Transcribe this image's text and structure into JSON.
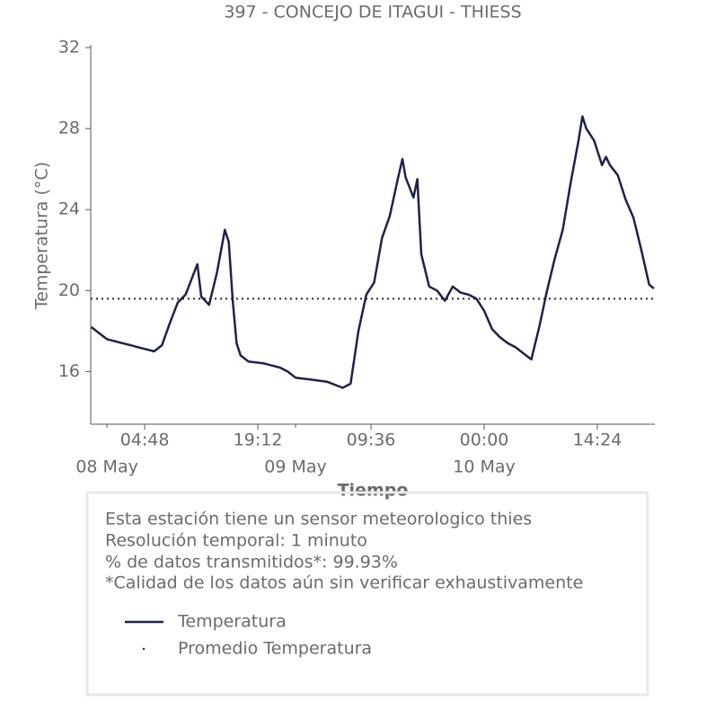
{
  "chart_data": {
    "type": "line",
    "title": "397 - CONCEJO DE ITAGUI - THIESS",
    "x_label": "Tiempo",
    "y_label": "Temperatura (°C)",
    "xlim": [
      "07 May 21:56",
      "10 May 21:43"
    ],
    "ylim": [
      13.4,
      32
    ],
    "yticks": [
      16,
      20,
      24,
      28,
      32
    ],
    "xticks": [
      {
        "value": "08 May 04:48",
        "label": "04:48"
      },
      {
        "value": "08 May 19:12",
        "label": "19:12"
      },
      {
        "value": "09 May 09:36",
        "label": "09:36"
      },
      {
        "value": "10 May 00:00",
        "label": "00:00"
      },
      {
        "value": "10 May 14:24",
        "label": "14:24"
      }
    ],
    "xticks_minor": [
      {
        "value": "08 May 00:00",
        "label": "08 May"
      },
      {
        "value": "09 May 00:00",
        "label": "09 May"
      },
      {
        "value": "10 May 00:00",
        "label": "10 May"
      }
    ],
    "x": [
      "07 May 22:00",
      "07 May 23:00",
      "08 May 00:00",
      "08 May 01:00",
      "08 May 02:00",
      "08 May 03:00",
      "08 May 04:00",
      "08 May 05:00",
      "08 May 06:00",
      "08 May 07:00",
      "08 May 08:00",
      "08 May 09:00",
      "08 May 10:00",
      "08 May 11:00",
      "08 May 11:30",
      "08 May 12:00",
      "08 May 13:00",
      "08 May 14:00",
      "08 May 15:00",
      "08 May 15:30",
      "08 May 16:00",
      "08 May 16:30",
      "08 May 17:00",
      "08 May 18:00",
      "08 May 20:00",
      "08 May 22:00",
      "08 May 23:00",
      "09 May 00:00",
      "09 May 02:00",
      "09 May 04:00",
      "09 May 06:00",
      "09 May 07:00",
      "09 May 08:00",
      "09 May 09:00",
      "09 May 10:00",
      "09 May 11:00",
      "09 May 12:00",
      "09 May 13:00",
      "09 May 13:36",
      "09 May 14:00",
      "09 May 15:00",
      "09 May 15:30",
      "09 May 16:00",
      "09 May 17:00",
      "09 May 18:00",
      "09 May 19:00",
      "09 May 20:00",
      "09 May 21:00",
      "09 May 22:00",
      "09 May 23:00",
      "10 May 00:00",
      "10 May 01:00",
      "10 May 02:00",
      "10 May 03:00",
      "10 May 04:00",
      "10 May 05:00",
      "10 May 06:00",
      "10 May 07:00",
      "10 May 08:00",
      "10 May 09:00",
      "10 May 10:00",
      "10 May 11:00",
      "10 May 12:00",
      "10 May 12:30",
      "10 May 13:00",
      "10 May 14:00",
      "10 May 15:00",
      "10 May 15:30",
      "10 May 16:00",
      "10 May 17:00",
      "10 May 18:00",
      "10 May 19:00",
      "10 May 20:00",
      "10 May 21:00",
      "10 May 21:36"
    ],
    "series": [
      {
        "name": "Temperatura",
        "color": "#20214a",
        "values": [
          18.2,
          17.9,
          17.6,
          17.5,
          17.4,
          17.3,
          17.2,
          17.1,
          17.0,
          17.3,
          18.4,
          19.4,
          19.8,
          20.8,
          21.3,
          19.7,
          19.3,
          20.9,
          23.0,
          22.4,
          19.5,
          17.4,
          16.8,
          16.5,
          16.4,
          16.2,
          16.0,
          15.7,
          15.6,
          15.5,
          15.2,
          15.4,
          18.0,
          19.8,
          20.4,
          22.6,
          23.7,
          25.5,
          26.5,
          25.6,
          24.6,
          25.5,
          21.8,
          20.2,
          20.0,
          19.5,
          20.2,
          19.9,
          19.8,
          19.6,
          19.0,
          18.1,
          17.7,
          17.4,
          17.2,
          16.9,
          16.6,
          18.2,
          20.0,
          21.6,
          23.0,
          25.3,
          27.4,
          28.6,
          28.0,
          27.4,
          26.2,
          26.6,
          26.2,
          25.7,
          24.5,
          23.6,
          22.0,
          20.3,
          20.1
        ]
      }
    ],
    "mean": {
      "name": "Promedio Temperatura",
      "value": 19.6,
      "color": "#20214a"
    },
    "annotations": [
      "Esta estación tiene un sensor meteorologico thies",
      "Resolución temporal: 1 minuto",
      "% de datos transmitidos*: 99.93%",
      "*Calidad de los datos aún sin verificar exhaustivamente"
    ]
  }
}
